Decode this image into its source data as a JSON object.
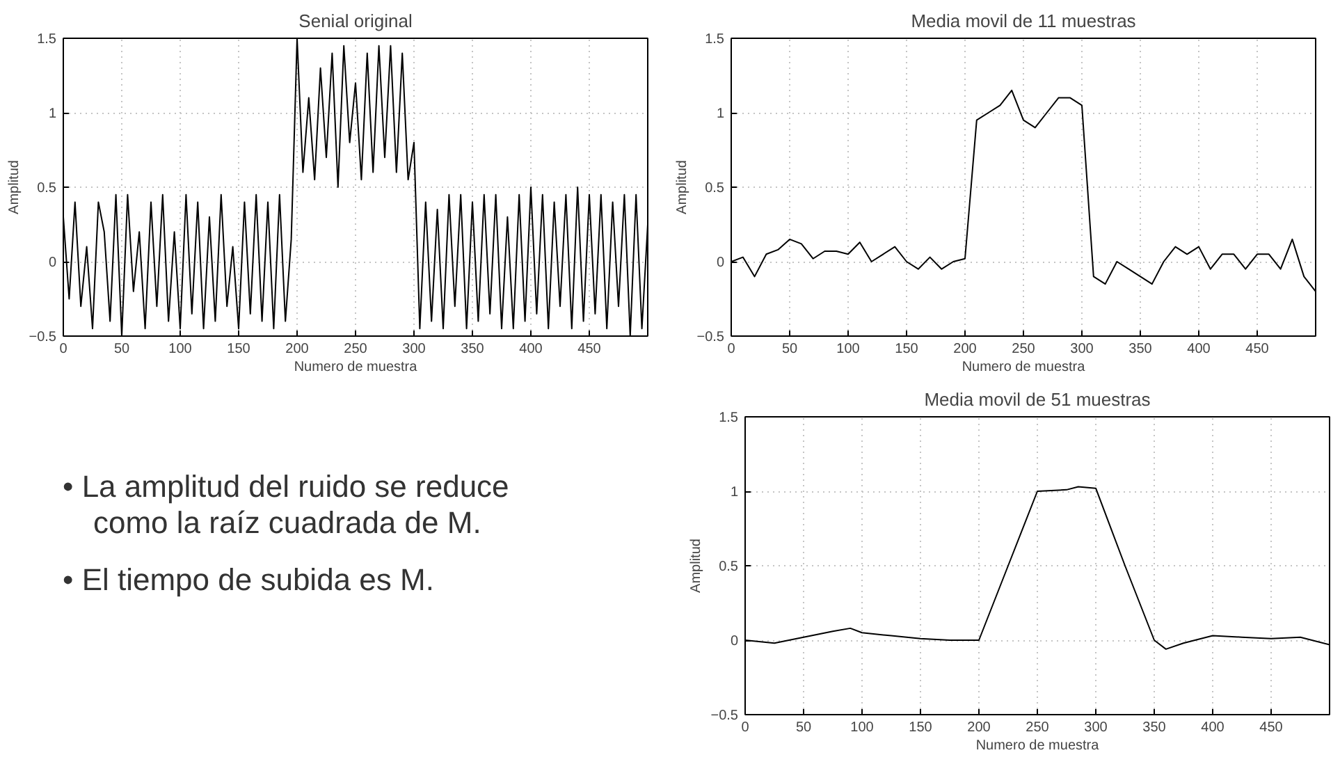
{
  "chart_data": [
    {
      "type": "line",
      "title": "Senial original",
      "xlabel": "Numero de muestra",
      "ylabel": "Amplitud",
      "xlim": [
        0,
        500
      ],
      "ylim": [
        -0.5,
        1.5
      ],
      "xticks": [
        0,
        50,
        100,
        150,
        200,
        250,
        300,
        350,
        400,
        450
      ],
      "yticks": [
        -0.5,
        0,
        0.5,
        1,
        1.5
      ],
      "grid": true,
      "marker": "none",
      "line_style": "solid",
      "series": [
        {
          "color": "#000000",
          "x": [
            0,
            5,
            10,
            15,
            20,
            25,
            30,
            35,
            40,
            45,
            50,
            55,
            60,
            65,
            70,
            75,
            80,
            85,
            90,
            95,
            100,
            105,
            110,
            115,
            120,
            125,
            130,
            135,
            140,
            145,
            150,
            155,
            160,
            165,
            170,
            175,
            180,
            185,
            190,
            195,
            200,
            205,
            210,
            215,
            220,
            225,
            230,
            235,
            240,
            245,
            250,
            255,
            260,
            265,
            270,
            275,
            280,
            285,
            290,
            295,
            300,
            305,
            310,
            315,
            320,
            325,
            330,
            335,
            340,
            345,
            350,
            355,
            360,
            365,
            370,
            375,
            380,
            385,
            390,
            395,
            400,
            405,
            410,
            415,
            420,
            425,
            430,
            435,
            440,
            445,
            450,
            455,
            460,
            465,
            470,
            475,
            480,
            485,
            490,
            495,
            500
          ],
          "values": [
            0.3,
            -0.25,
            0.4,
            -0.3,
            0.1,
            -0.45,
            0.4,
            0.2,
            -0.4,
            0.45,
            -0.5,
            0.45,
            -0.2,
            0.2,
            -0.45,
            0.4,
            -0.3,
            0.45,
            -0.4,
            0.2,
            -0.45,
            0.45,
            -0.35,
            0.4,
            -0.45,
            0.3,
            -0.4,
            0.45,
            -0.3,
            0.1,
            -0.45,
            0.4,
            -0.35,
            0.45,
            -0.4,
            0.4,
            -0.45,
            0.45,
            -0.4,
            0.15,
            1.5,
            0.6,
            1.1,
            0.55,
            1.3,
            0.7,
            1.4,
            0.5,
            1.45,
            0.8,
            1.2,
            0.55,
            1.4,
            0.6,
            1.45,
            0.7,
            1.45,
            0.6,
            1.4,
            0.55,
            0.8,
            -0.45,
            0.4,
            -0.4,
            0.35,
            -0.45,
            0.45,
            -0.3,
            0.45,
            -0.45,
            0.4,
            -0.4,
            0.45,
            -0.35,
            0.45,
            -0.45,
            0.3,
            -0.45,
            0.45,
            -0.4,
            0.5,
            -0.35,
            0.45,
            -0.45,
            0.4,
            -0.3,
            0.45,
            -0.45,
            0.5,
            -0.4,
            0.45,
            -0.35,
            0.45,
            -0.45,
            0.4,
            -0.3,
            0.45,
            -0.5,
            0.45,
            -0.45,
            0.25
          ]
        }
      ]
    },
    {
      "type": "line",
      "title": "Media movil de 11 muestras",
      "xlabel": "Numero de muestra",
      "ylabel": "Amplitud",
      "xlim": [
        0,
        500
      ],
      "ylim": [
        -0.5,
        1.5
      ],
      "xticks": [
        0,
        50,
        100,
        150,
        200,
        250,
        300,
        350,
        400,
        450
      ],
      "yticks": [
        -0.5,
        0,
        0.5,
        1,
        1.5
      ],
      "grid": true,
      "marker": "none",
      "line_style": "solid",
      "series": [
        {
          "color": "#000000",
          "x": [
            0,
            10,
            20,
            30,
            40,
            50,
            60,
            70,
            80,
            90,
            100,
            110,
            120,
            130,
            140,
            150,
            160,
            170,
            180,
            190,
            200,
            210,
            220,
            230,
            240,
            250,
            260,
            270,
            280,
            290,
            300,
            310,
            320,
            330,
            340,
            350,
            360,
            370,
            380,
            390,
            400,
            410,
            420,
            430,
            440,
            450,
            460,
            470,
            480,
            490,
            500
          ],
          "values": [
            0,
            0.03,
            -0.1,
            0.05,
            0.08,
            0.15,
            0.12,
            0.02,
            0.07,
            0.07,
            0.05,
            0.13,
            0,
            0.05,
            0.1,
            0,
            -0.05,
            0.03,
            -0.05,
            0,
            0.02,
            0.95,
            1.0,
            1.05,
            1.15,
            0.95,
            0.9,
            1.0,
            1.1,
            1.1,
            1.05,
            -0.1,
            -0.15,
            0,
            -0.05,
            -0.1,
            -0.15,
            0,
            0.1,
            0.05,
            0.1,
            -0.05,
            0.05,
            0.05,
            -0.05,
            0.05,
            0.05,
            -0.05,
            0.15,
            -0.1,
            -0.2
          ]
        }
      ]
    },
    {
      "type": "other",
      "annotations": [
        "•  La amplitud del ruido se reduce como la raíz cuadrada de M.",
        "•  El tiempo de subida es M."
      ]
    },
    {
      "type": "line",
      "title": "Media movil de 51 muestras",
      "xlabel": "Numero de muestra",
      "ylabel": "Amplitud",
      "xlim": [
        0,
        500
      ],
      "ylim": [
        -0.5,
        1.5
      ],
      "xticks": [
        0,
        50,
        100,
        150,
        200,
        250,
        300,
        350,
        400,
        450
      ],
      "yticks": [
        -0.5,
        0,
        0.5,
        1,
        1.5
      ],
      "grid": true,
      "marker": "none",
      "line_style": "solid",
      "series": [
        {
          "color": "#000000",
          "x": [
            0,
            25,
            50,
            75,
            90,
            100,
            125,
            150,
            175,
            200,
            225,
            250,
            275,
            285,
            300,
            325,
            350,
            360,
            375,
            400,
            425,
            450,
            475,
            500
          ],
          "values": [
            0,
            -0.02,
            0.02,
            0.06,
            0.08,
            0.05,
            0.03,
            0.01,
            0,
            0,
            0.5,
            1.0,
            1.01,
            1.03,
            1.02,
            0.5,
            0,
            -0.06,
            -0.02,
            0.03,
            0.02,
            0.01,
            0.02,
            -0.03
          ]
        }
      ]
    }
  ]
}
